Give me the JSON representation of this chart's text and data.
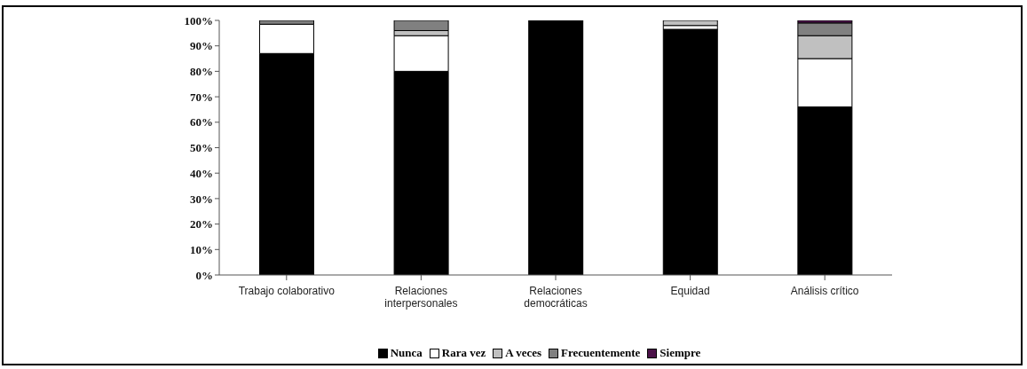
{
  "chart_data": {
    "type": "bar",
    "stacked": true,
    "categories": [
      "Trabajo colaborativo",
      "Relaciones interpersonales",
      "Relaciones democráticas",
      "Equidad",
      "Análisis crítico"
    ],
    "series": [
      {
        "name": "Nunca",
        "color": "#000000",
        "values": [
          87,
          80,
          100,
          96.5,
          66
        ]
      },
      {
        "name": "Rara vez",
        "color": "#ffffff",
        "values": [
          11.5,
          14,
          0,
          1.5,
          19
        ]
      },
      {
        "name": "A veces",
        "color": "#c0c0c0",
        "values": [
          0,
          2,
          0,
          2,
          9
        ]
      },
      {
        "name": "Frecuentemente",
        "color": "#808080",
        "values": [
          1.5,
          4,
          0,
          0,
          5
        ]
      },
      {
        "name": "Siempre",
        "color": "#4b1248",
        "values": [
          0,
          0,
          0,
          0,
          1
        ]
      }
    ],
    "ylim": [
      0,
      100
    ],
    "yticks": [
      {
        "value": 0,
        "label": "0%"
      },
      {
        "value": 10,
        "label": "10%"
      },
      {
        "value": 20,
        "label": "20%"
      },
      {
        "value": 30,
        "label": "30%"
      },
      {
        "value": 40,
        "label": "40%"
      },
      {
        "value": 50,
        "label": "50%"
      },
      {
        "value": 60,
        "label": "60%"
      },
      {
        "value": 70,
        "label": "70%"
      },
      {
        "value": 80,
        "label": "80%"
      },
      {
        "value": 90,
        "label": "90%"
      },
      {
        "value": 100,
        "label": "100%"
      }
    ],
    "grid": false,
    "legend": "bottom"
  }
}
